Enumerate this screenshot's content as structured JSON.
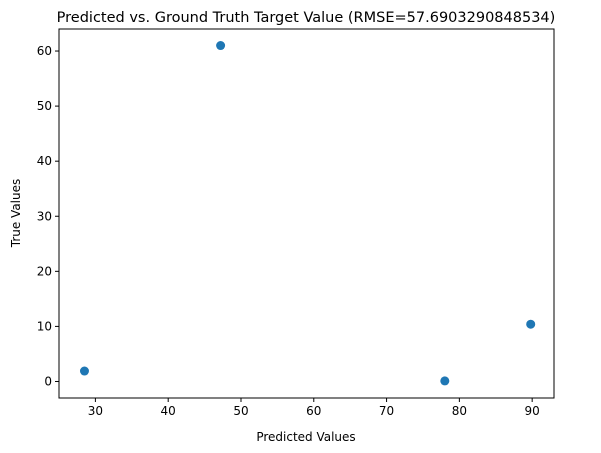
{
  "chart_data": {
    "type": "scatter",
    "title": "Predicted vs. Ground Truth Target Value (RMSE=57.6903290848534)",
    "xlabel": "Predicted Values",
    "ylabel": "True Values",
    "xlim": [
      25.0,
      93.0
    ],
    "ylim": [
      -3.0,
      64.0
    ],
    "xticks": [
      30,
      40,
      50,
      60,
      70,
      80,
      90
    ],
    "yticks": [
      0,
      10,
      20,
      30,
      40,
      50,
      60
    ],
    "grid": false,
    "marker_color": "#1f77b4",
    "points": [
      {
        "x": 28.5,
        "y": 1.9
      },
      {
        "x": 47.2,
        "y": 61.0
      },
      {
        "x": 78.0,
        "y": 0.1
      },
      {
        "x": 89.8,
        "y": 10.4
      }
    ]
  }
}
